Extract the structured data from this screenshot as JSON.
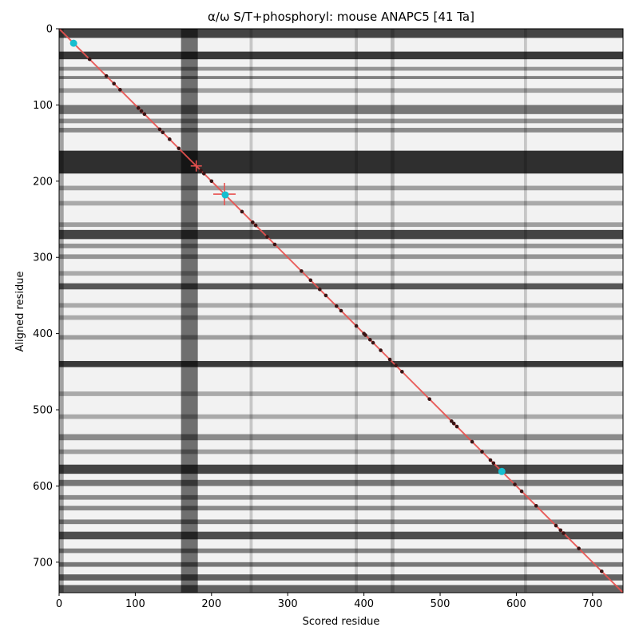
{
  "chart_data": {
    "type": "heatmap",
    "title": "α/ω S/T+phosphoryl: mouse ANAPC5 [41 Ta]",
    "xlabel": "Scored residue",
    "ylabel": "Aligned residue",
    "xlim": [
      0,
      740
    ],
    "ylim": [
      740,
      0
    ],
    "x_ticks": [
      0,
      100,
      200,
      300,
      400,
      500,
      600,
      700
    ],
    "y_ticks": [
      0,
      100,
      200,
      300,
      400,
      500,
      600,
      700
    ],
    "colormap": "grayscale (dark = high similarity)",
    "dark_row_bands": [
      {
        "from": 0,
        "to": 12,
        "level": 0.85
      },
      {
        "from": 30,
        "to": 40,
        "level": 0.9
      },
      {
        "from": 50,
        "to": 55,
        "level": 0.45
      },
      {
        "from": 62,
        "to": 66,
        "level": 0.55
      },
      {
        "from": 78,
        "to": 84,
        "level": 0.4
      },
      {
        "from": 100,
        "to": 112,
        "level": 0.6
      },
      {
        "from": 118,
        "to": 124,
        "level": 0.45
      },
      {
        "from": 130,
        "to": 136,
        "level": 0.5
      },
      {
        "from": 160,
        "to": 190,
        "level": 0.95
      },
      {
        "from": 206,
        "to": 212,
        "level": 0.4
      },
      {
        "from": 226,
        "to": 232,
        "level": 0.35
      },
      {
        "from": 254,
        "to": 260,
        "level": 0.4
      },
      {
        "from": 264,
        "to": 276,
        "level": 0.85
      },
      {
        "from": 282,
        "to": 288,
        "level": 0.45
      },
      {
        "from": 296,
        "to": 302,
        "level": 0.45
      },
      {
        "from": 318,
        "to": 324,
        "level": 0.35
      },
      {
        "from": 334,
        "to": 342,
        "level": 0.75
      },
      {
        "from": 360,
        "to": 366,
        "level": 0.35
      },
      {
        "from": 376,
        "to": 382,
        "level": 0.35
      },
      {
        "from": 402,
        "to": 408,
        "level": 0.4
      },
      {
        "from": 436,
        "to": 444,
        "level": 0.9
      },
      {
        "from": 476,
        "to": 482,
        "level": 0.35
      },
      {
        "from": 506,
        "to": 512,
        "level": 0.35
      },
      {
        "from": 532,
        "to": 540,
        "level": 0.5
      },
      {
        "from": 552,
        "to": 558,
        "level": 0.4
      },
      {
        "from": 572,
        "to": 584,
        "level": 0.85
      },
      {
        "from": 592,
        "to": 600,
        "level": 0.6
      },
      {
        "from": 612,
        "to": 618,
        "level": 0.5
      },
      {
        "from": 626,
        "to": 632,
        "level": 0.5
      },
      {
        "from": 644,
        "to": 650,
        "level": 0.55
      },
      {
        "from": 660,
        "to": 670,
        "level": 0.8
      },
      {
        "from": 682,
        "to": 688,
        "level": 0.55
      },
      {
        "from": 700,
        "to": 706,
        "level": 0.6
      },
      {
        "from": 716,
        "to": 724,
        "level": 0.7
      },
      {
        "from": 730,
        "to": 740,
        "level": 0.7
      }
    ],
    "dark_column_bands": [
      {
        "from": 0,
        "to": 6,
        "level": 0.55
      },
      {
        "from": 160,
        "to": 182,
        "level": 0.9
      },
      {
        "from": 250,
        "to": 254,
        "level": 0.3
      },
      {
        "from": 388,
        "to": 392,
        "level": 0.3
      },
      {
        "from": 435,
        "to": 440,
        "level": 0.35
      },
      {
        "from": 610,
        "to": 614,
        "level": 0.3
      }
    ],
    "diagonal": {
      "from": [
        0,
        0
      ],
      "to": [
        740,
        740
      ],
      "color": "#e8514f"
    },
    "diagonal_points": [
      {
        "x": 40,
        "y": 40
      },
      {
        "x": 62,
        "y": 62
      },
      {
        "x": 72,
        "y": 72
      },
      {
        "x": 80,
        "y": 80
      },
      {
        "x": 104,
        "y": 104
      },
      {
        "x": 108,
        "y": 108
      },
      {
        "x": 112,
        "y": 112
      },
      {
        "x": 132,
        "y": 132
      },
      {
        "x": 136,
        "y": 136
      },
      {
        "x": 145,
        "y": 145
      },
      {
        "x": 157,
        "y": 157
      },
      {
        "x": 186,
        "y": 186
      },
      {
        "x": 190,
        "y": 190
      },
      {
        "x": 200,
        "y": 200
      },
      {
        "x": 240,
        "y": 240
      },
      {
        "x": 254,
        "y": 254
      },
      {
        "x": 258,
        "y": 258
      },
      {
        "x": 273,
        "y": 273
      },
      {
        "x": 283,
        "y": 283
      },
      {
        "x": 318,
        "y": 318
      },
      {
        "x": 330,
        "y": 330
      },
      {
        "x": 342,
        "y": 342
      },
      {
        "x": 350,
        "y": 350
      },
      {
        "x": 364,
        "y": 364
      },
      {
        "x": 370,
        "y": 370
      },
      {
        "x": 390,
        "y": 390
      },
      {
        "x": 400,
        "y": 400
      },
      {
        "x": 402,
        "y": 402
      },
      {
        "x": 408,
        "y": 408
      },
      {
        "x": 412,
        "y": 412
      },
      {
        "x": 422,
        "y": 422
      },
      {
        "x": 434,
        "y": 434
      },
      {
        "x": 442,
        "y": 442
      },
      {
        "x": 450,
        "y": 450
      },
      {
        "x": 486,
        "y": 486
      },
      {
        "x": 515,
        "y": 515
      },
      {
        "x": 518,
        "y": 518
      },
      {
        "x": 522,
        "y": 522
      },
      {
        "x": 542,
        "y": 542
      },
      {
        "x": 555,
        "y": 555
      },
      {
        "x": 566,
        "y": 566
      },
      {
        "x": 570,
        "y": 570
      },
      {
        "x": 598,
        "y": 598
      },
      {
        "x": 607,
        "y": 607
      },
      {
        "x": 626,
        "y": 626
      },
      {
        "x": 652,
        "y": 652
      },
      {
        "x": 658,
        "y": 658
      },
      {
        "x": 662,
        "y": 662
      },
      {
        "x": 682,
        "y": 682
      },
      {
        "x": 712,
        "y": 712
      }
    ],
    "highlight_points": [
      {
        "x": 19,
        "y": 19,
        "color": "#17becf"
      },
      {
        "x": 218,
        "y": 218,
        "color": "#17becf"
      },
      {
        "x": 581,
        "y": 581,
        "color": "#17becf"
      }
    ],
    "crosshair_markers": [
      {
        "x": 180,
        "y": 180,
        "size": "small",
        "color": "#e8514f"
      },
      {
        "x": 217,
        "y": 217,
        "size": "large",
        "color": "#e8514f"
      }
    ]
  }
}
